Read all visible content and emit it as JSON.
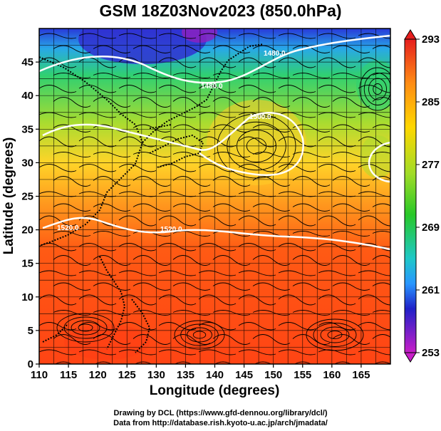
{
  "title": "GSM 18Z03Nov2023 (850.0hPa)",
  "x_axis": {
    "label": "Longitude (degrees)",
    "ticks": [
      "110",
      "115",
      "120",
      "125",
      "130",
      "135",
      "140",
      "145",
      "150",
      "155",
      "160",
      "165"
    ]
  },
  "y_axis": {
    "label": "Latitude  (degrees)",
    "ticks": [
      "0",
      "5",
      "10",
      "15",
      "20",
      "25",
      "30",
      "35",
      "40",
      "45"
    ]
  },
  "colorbar": {
    "ticks": [
      "293",
      "285",
      "277",
      "269",
      "261",
      "253"
    ],
    "colors": [
      "#c81ec8",
      "#2020c8",
      "#2896ff",
      "#1ec8c8",
      "#28c828",
      "#a0dc28",
      "#ffd700",
      "#ff8c14",
      "#e61e1e"
    ]
  },
  "contour_labels": [
    "1480.0",
    "1480.0",
    "1500.0",
    "1520.0",
    "1520.0"
  ],
  "credits": {
    "line1": "Drawing by DCL (https://www.gfd-dennou.org/library/dcl/)",
    "line2": "Data from http://database.rish.kyoto-u.ac.jp/arch/jmadata/"
  }
}
